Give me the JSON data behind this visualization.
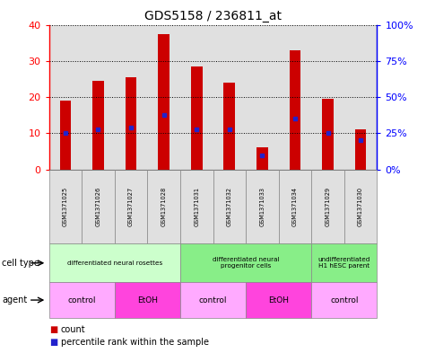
{
  "title": "GDS5158 / 236811_at",
  "samples": [
    "GSM1371025",
    "GSM1371026",
    "GSM1371027",
    "GSM1371028",
    "GSM1371031",
    "GSM1371032",
    "GSM1371033",
    "GSM1371034",
    "GSM1371029",
    "GSM1371030"
  ],
  "counts": [
    19.0,
    24.5,
    25.5,
    37.5,
    28.5,
    24.0,
    6.2,
    33.0,
    19.5,
    11.0
  ],
  "percentile_ranks_left": [
    10.0,
    11.0,
    11.5,
    15.0,
    11.0,
    11.0,
    4.0,
    14.0,
    10.0,
    8.0
  ],
  "ylim_left": [
    0,
    40
  ],
  "ylim_right": [
    0,
    100
  ],
  "yticks_left": [
    0,
    10,
    20,
    30,
    40
  ],
  "ytick_labels_right": [
    "0%",
    "25%",
    "50%",
    "75%",
    "100%"
  ],
  "bar_color": "#cc0000",
  "dot_color": "#2222cc",
  "bar_width": 0.35,
  "cell_type_groups": [
    {
      "label": "differentiated neural rosettes",
      "start": 0,
      "end": 3,
      "color": "#ccffcc"
    },
    {
      "label": "differentiated neural\nprogenitor cells",
      "start": 4,
      "end": 7,
      "color": "#88ee88"
    },
    {
      "label": "undifferentiated\nH1 hESC parent",
      "start": 8,
      "end": 9,
      "color": "#88ee88"
    }
  ],
  "agent_groups": [
    {
      "label": "control",
      "start": 0,
      "end": 1,
      "color": "#ffaaff"
    },
    {
      "label": "EtOH",
      "start": 2,
      "end": 3,
      "color": "#ff55ee"
    },
    {
      "label": "control",
      "start": 4,
      "end": 5,
      "color": "#ffaaff"
    },
    {
      "label": "EtOH",
      "start": 6,
      "end": 7,
      "color": "#ff55ee"
    },
    {
      "label": "control",
      "start": 8,
      "end": 9,
      "color": "#ffaaff"
    }
  ],
  "cell_type_label": "cell type",
  "agent_label": "agent",
  "legend_count_label": "count",
  "legend_pct_label": "percentile rank within the sample",
  "plot_bg": "#ffffff",
  "col_bg": "#e0e0e0"
}
